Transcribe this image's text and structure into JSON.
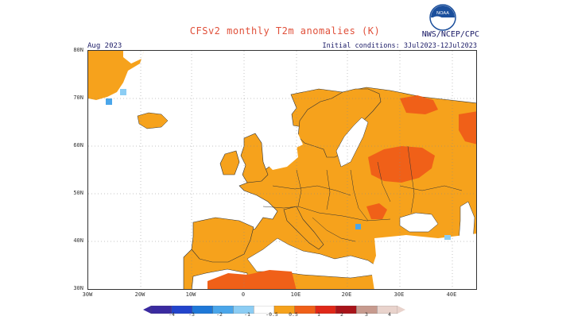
{
  "map": {
    "title": "CFSv2 monthly T2m anomalies (K)",
    "agency": "NWS/NCEP/CPC",
    "logo_text": "NOAA",
    "period": "Aug 2023",
    "initial_conditions": "Initial conditions: 3Jul2023-12Jul2023",
    "region": "Europe",
    "latitude_labels": [
      "80N",
      "70N",
      "60N",
      "50N",
      "40N",
      "30N"
    ],
    "longitude_labels": [
      "30W",
      "20W",
      "10W",
      "0",
      "10E",
      "20E",
      "30E",
      "40E"
    ],
    "legend": {
      "labels": [
        "-4",
        "-2",
        "-1",
        "-0.5",
        "0.5",
        "1",
        "2",
        "3",
        "4",
        "-3"
      ],
      "colors": [
        "#3a2aa0",
        "#2244cc",
        "#1e78d8",
        "#4aa6ea",
        "#8ccdf4",
        "#ffffff",
        "#f6a21c",
        "#f06018",
        "#e02818",
        "#a8141a",
        "#c79a8e",
        "#e9d3cc"
      ]
    },
    "colors": {
      "warm1": "#f6a21c",
      "warm2": "#f06018",
      "warm3": "#e02818",
      "cold1": "#8ccdf4",
      "cold2": "#4aa6ea",
      "title": "#e0503a",
      "text": "#1a1a66"
    }
  }
}
